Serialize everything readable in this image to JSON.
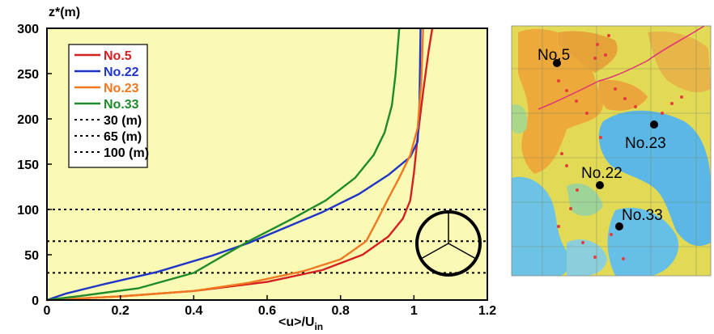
{
  "chart_data": [
    {
      "type": "line",
      "title": "",
      "xlabel": "<u>/U",
      "xlabel_sub": "in",
      "ylabel": "z*(m)",
      "xlim": [
        0,
        1.2
      ],
      "ylim": [
        0,
        300
      ],
      "xticks": [
        "0",
        "0.2",
        "0.4",
        "0.6",
        "0.8",
        "1",
        "1.2"
      ],
      "yticks": [
        "0",
        "50",
        "100",
        "150",
        "200",
        "250",
        "300"
      ],
      "grid": false,
      "legend_position": "top-left",
      "series": [
        {
          "name": "No.5",
          "color": "#d42020",
          "points": [
            [
              0,
              0
            ],
            [
              0.2,
              4
            ],
            [
              0.4,
              10
            ],
            [
              0.6,
              20
            ],
            [
              0.75,
              33
            ],
            [
              0.86,
              50
            ],
            [
              0.93,
              70
            ],
            [
              0.97,
              90
            ],
            [
              0.99,
              110
            ],
            [
              1.0,
              140
            ],
            [
              1.01,
              180
            ],
            [
              1.025,
              230
            ],
            [
              1.04,
              275
            ],
            [
              1.05,
              300
            ]
          ]
        },
        {
          "name": "No.22",
          "color": "#1f35c8",
          "points": [
            [
              0,
              0
            ],
            [
              0.05,
              7
            ],
            [
              0.15,
              17
            ],
            [
              0.3,
              31
            ],
            [
              0.45,
              49
            ],
            [
              0.55,
              63
            ],
            [
              0.65,
              80
            ],
            [
              0.75,
              97
            ],
            [
              0.85,
              117
            ],
            [
              0.93,
              138
            ],
            [
              0.99,
              158
            ],
            [
              1.01,
              175
            ],
            [
              1.015,
              215
            ],
            [
              1.018,
              300
            ]
          ]
        },
        {
          "name": "No.23",
          "color": "#f07820",
          "points": [
            [
              0,
              0
            ],
            [
              0.2,
              4
            ],
            [
              0.4,
              10
            ],
            [
              0.55,
              19
            ],
            [
              0.7,
              32
            ],
            [
              0.8,
              45
            ],
            [
              0.87,
              65
            ],
            [
              0.9,
              88
            ],
            [
              0.93,
              112
            ],
            [
              0.96,
              135
            ],
            [
              0.99,
              160
            ],
            [
              1.01,
              190
            ],
            [
              1.02,
              240
            ],
            [
              1.025,
              300
            ]
          ]
        },
        {
          "name": "No.33",
          "color": "#1e8a2a",
          "points": [
            [
              0,
              0
            ],
            [
              0.1,
              5
            ],
            [
              0.25,
              13
            ],
            [
              0.4,
              30
            ],
            [
              0.55,
              65
            ],
            [
              0.67,
              90
            ],
            [
              0.76,
              110
            ],
            [
              0.84,
              135
            ],
            [
              0.89,
              160
            ],
            [
              0.92,
              185
            ],
            [
              0.94,
              215
            ],
            [
              0.95,
              250
            ],
            [
              0.96,
              300
            ]
          ]
        }
      ],
      "reference_lines": [
        {
          "label": "30 (m)",
          "y": 30
        },
        {
          "label": "65 (m)",
          "y": 65
        },
        {
          "label": "100 (m)",
          "y": 100
        }
      ]
    }
  ],
  "map": {
    "labels": [
      "No.5",
      "No.23",
      "No.22",
      "No.33"
    ],
    "line_color": "#e0307a"
  },
  "colors": {
    "plot_background": "#fafab4",
    "map_blue": "#5ab7e6",
    "map_yellow": "#d9d84a",
    "map_orange": "#eda93a"
  }
}
